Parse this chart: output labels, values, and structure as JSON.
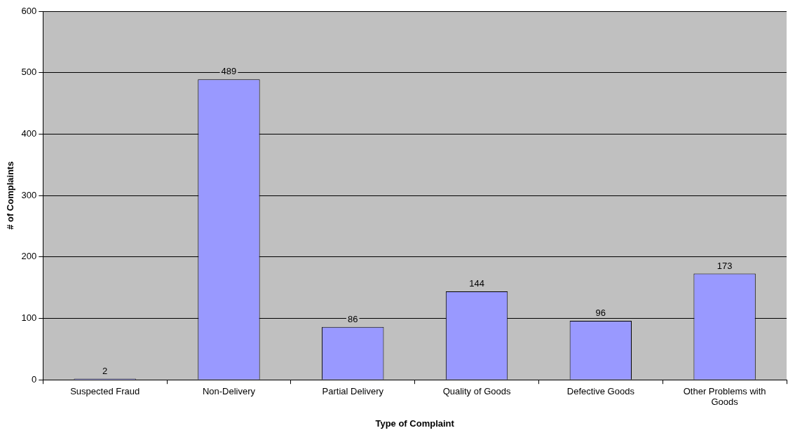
{
  "chart_data": {
    "type": "bar",
    "xlabel": "Type of Complaint",
    "ylabel": "# of Complaints",
    "categories": [
      "Suspected Fraud",
      "Non-Delivery",
      "Partial Delivery",
      "Quality of Goods",
      "Defective Goods",
      "Other Problems with Goods"
    ],
    "values": [
      2,
      489,
      86,
      144,
      96,
      173
    ],
    "color": "#9999ff",
    "ylim": [
      0,
      600
    ],
    "yticks": [
      0,
      100,
      200,
      300,
      400,
      500,
      600
    ],
    "grid": "y",
    "legend": false,
    "data_labels": true
  }
}
